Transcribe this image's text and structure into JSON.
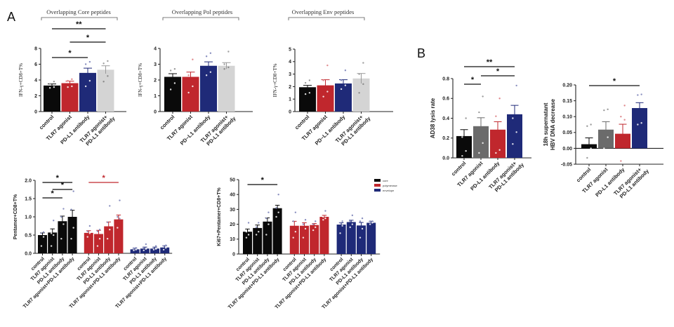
{
  "figure": {
    "panel_labels": [
      "A",
      "B"
    ],
    "group_titles": [
      "Overlapping Core peptides",
      "Overlapping Pol peptides",
      "Overlapping Env peptides"
    ]
  },
  "colors": {
    "control": "#0a0a0a",
    "tlr7": "#c0272d",
    "pdl1": "#1f2a78",
    "combo": "#d4d4d4",
    "tlr7_gray": "#6b6b6b",
    "polymerase": "#c0272d",
    "envelope": "#1f2a78",
    "core": "#0a0a0a"
  },
  "chart_data": [
    {
      "id": "A-core",
      "type": "bar",
      "title": "Overlapping Core peptides",
      "ylabel": "IFN-γ+CD8+T%",
      "ylim": [
        0,
        8
      ],
      "yticks": [
        "0",
        "2",
        "4",
        "6",
        "8"
      ],
      "categories": [
        "control",
        "TLR7 agonist",
        "PD-L1 antibody",
        "TLR7 agonist+ PD-L1 antibody"
      ],
      "values": [
        3.3,
        3.6,
        4.9,
        5.3
      ],
      "errors": [
        0.2,
        0.25,
        0.6,
        0.5
      ],
      "bar_colors": [
        "control",
        "tlr7",
        "pdl1",
        "combo"
      ],
      "points": [
        [
          3.0,
          3.1,
          3.5,
          3.8
        ],
        [
          3.1,
          3.2,
          3.9,
          4.1
        ],
        [
          3.2,
          3.9,
          6.0,
          6.3
        ],
        [
          3.8,
          4.5,
          6.1,
          6.4
        ]
      ],
      "significance": [
        {
          "from": 0,
          "to": 2,
          "label": "*",
          "level": 1
        },
        {
          "from": 1,
          "to": 3,
          "label": "*",
          "level": 2
        },
        {
          "from": 0,
          "to": 3,
          "label": "**",
          "level": 3
        }
      ]
    },
    {
      "id": "A-pol",
      "type": "bar",
      "title": "Overlapping Pol peptides",
      "ylabel": "IFN-γ+CD8+T%",
      "ylim": [
        0,
        4
      ],
      "yticks": [
        "0",
        "1",
        "2",
        "3",
        "4"
      ],
      "categories": [
        "control",
        "TLR7 agonist",
        "PD−L1 antibody",
        "TLR7 agonist+ PD-L1 antibody"
      ],
      "values": [
        2.2,
        2.2,
        2.9,
        2.9
      ],
      "errors": [
        0.2,
        0.3,
        0.25,
        0.2
      ],
      "bar_colors": [
        "control",
        "tlr7",
        "pdl1",
        "combo"
      ],
      "points": [
        [
          1.4,
          1.8,
          2.6,
          2.7
        ],
        [
          1.2,
          1.6,
          2.3,
          3.3
        ],
        [
          2.3,
          2.5,
          3.5,
          3.7
        ],
        [
          2.7,
          2.8,
          3.0,
          3.8
        ]
      ],
      "significance": []
    },
    {
      "id": "A-env",
      "type": "bar",
      "title": "Overlapping Env peptides",
      "ylabel": "IFN-γ+CD8+T%",
      "ylim": [
        0,
        5
      ],
      "yticks": [
        "0",
        "1",
        "2",
        "3",
        "4",
        "5"
      ],
      "categories": [
        "control",
        "TLR7 agonist",
        "PD−L1 antibody",
        "TLR7 agonist+ PD-L1 antibody"
      ],
      "values": [
        1.95,
        2.1,
        2.25,
        2.65
      ],
      "errors": [
        0.15,
        0.45,
        0.3,
        0.4
      ],
      "bar_colors": [
        "control",
        "tlr7",
        "pdl1",
        "combo"
      ],
      "points": [
        [
          1.4,
          1.5,
          2.3,
          2.5
        ],
        [
          1.2,
          1.6,
          2.5,
          3.7
        ],
        [
          1.8,
          2.1,
          2.5,
          3.3
        ],
        [
          1.5,
          2.2,
          3.0,
          3.9
        ]
      ],
      "significance": []
    },
    {
      "id": "A-pentamer",
      "type": "bar",
      "ylabel": "Pentamer+CD8+T%",
      "ylim": [
        0,
        2.0
      ],
      "yticks": [
        "0.0",
        "0.5",
        "1.0",
        "1.5",
        "2.0"
      ],
      "categories": [
        "control",
        "TLR7 agonist",
        "PD-L1 antibody",
        "TLR7 agonist+PD-L1 antibody",
        "control",
        "TLR7 agonist",
        "PD-L1 antibody",
        "TLR7 agonist+PD-L1 antibody",
        "control",
        "TLR7 agonist",
        "PD-L1 antibody",
        "TLR7 agonist+PD-L1 antibody"
      ],
      "groups": [
        "core",
        "core",
        "core",
        "core",
        "polymerase",
        "polymerase",
        "polymerase",
        "polymerase",
        "envelope",
        "envelope",
        "envelope",
        "envelope"
      ],
      "values": [
        0.5,
        0.57,
        0.88,
        1.0,
        0.56,
        0.53,
        0.74,
        0.93,
        0.11,
        0.13,
        0.13,
        0.16
      ],
      "errors": [
        0.06,
        0.1,
        0.14,
        0.18,
        0.06,
        0.1,
        0.12,
        0.12,
        0.03,
        0.04,
        0.04,
        0.05
      ],
      "points": [
        [
          0.2,
          0.45,
          0.55,
          0.58
        ],
        [
          0.2,
          0.5,
          0.55,
          0.9
        ],
        [
          0.4,
          0.8,
          1.0,
          1.22
        ],
        [
          0.4,
          0.7,
          1.2,
          1.7
        ],
        [
          0.45,
          0.55,
          0.6,
          0.75
        ],
        [
          0.2,
          0.4,
          0.6,
          0.65
        ],
        [
          0.4,
          0.65,
          0.85,
          1.3
        ],
        [
          0.7,
          0.95,
          1.0,
          1.45
        ],
        [
          0.08,
          0.1,
          0.14,
          0.15
        ],
        [
          0.08,
          0.12,
          0.15,
          0.25
        ],
        [
          0.1,
          0.12,
          0.15,
          0.2
        ],
        [
          0.1,
          0.15,
          0.2,
          0.22
        ]
      ],
      "significance": [
        {
          "from": 0,
          "to": 2,
          "label": "*",
          "level": 1,
          "color": "core"
        },
        {
          "from": 1,
          "to": 3,
          "label": "*",
          "level": 2,
          "color": "core"
        },
        {
          "from": 0,
          "to": 3,
          "label": "*",
          "level": 3,
          "color": "core"
        },
        {
          "from": 4,
          "to": 7,
          "label": "*",
          "level": 3,
          "color": "polymerase"
        }
      ]
    },
    {
      "id": "A-ki67",
      "type": "bar",
      "ylabel": "Ki67+Pentamer+CD8+T%",
      "ylim": [
        0,
        50
      ],
      "yticks": [
        "0",
        "10",
        "20",
        "30",
        "40",
        "50"
      ],
      "categories": [
        "control",
        "TLR7 agonist",
        "PD-L1 antibody",
        "TLR7 agonist+PD-L1 antibody",
        "control",
        "TLR7 agonist",
        "PD-L1 antibody",
        "TLR7 agonist+PD-L1 antibody",
        "control",
        "TLR7 agonist",
        "PD-L1 antibody",
        "TLR7 agonist+PD-L1 antibody"
      ],
      "groups": [
        "core",
        "core",
        "core",
        "core",
        "polymerase",
        "polymerase",
        "polymerase",
        "polymerase",
        "envelope",
        "envelope",
        "envelope",
        "envelope"
      ],
      "values": [
        15,
        17.5,
        21.8,
        30.8,
        19,
        19,
        19.5,
        25,
        19.8,
        21.5,
        19.2,
        21
      ],
      "errors": [
        1.8,
        2,
        2.5,
        2,
        3,
        2,
        1,
        1,
        1.2,
        1.2,
        2,
        1
      ],
      "points": [
        [
          11,
          13,
          15,
          21
        ],
        [
          13,
          15,
          18,
          21
        ],
        [
          13,
          20,
          24,
          28
        ],
        [
          25,
          28,
          31,
          40
        ],
        [
          11,
          15,
          22,
          28
        ],
        [
          11,
          17,
          20,
          23
        ],
        [
          16,
          18,
          20,
          22
        ],
        [
          23,
          24,
          25,
          29
        ],
        [
          14,
          19,
          21,
          22
        ],
        [
          18,
          20,
          22,
          26
        ],
        [
          11,
          17,
          22,
          24
        ],
        [
          20,
          21,
          22,
          22
        ]
      ],
      "legend": {
        "entries": [
          "core",
          "polymerase",
          "envelope"
        ],
        "placement": "top-right"
      },
      "significance": [
        {
          "from": 0,
          "to": 3,
          "label": "*",
          "level": 1,
          "color": "core"
        }
      ]
    },
    {
      "id": "B-lysis",
      "type": "bar",
      "ylabel": "AD38 lysis rate",
      "ylim": [
        0,
        0.8
      ],
      "yticks": [
        "0.0",
        "0.2",
        "0.4",
        "0.6",
        "0.8"
      ],
      "categories": [
        "control",
        "TLR7 agonist",
        "PD-L1 antibody",
        "TLR7 agonist+ PD-L1 antibody"
      ],
      "values": [
        0.22,
        0.32,
        0.285,
        0.44
      ],
      "errors": [
        0.065,
        0.085,
        0.08,
        0.09
      ],
      "bar_colors": [
        "control",
        "tlr7_gray",
        "tlr7",
        "pdl1"
      ],
      "points": [
        [
          0.02,
          0.07,
          0.21,
          0.4
        ],
        [
          0.05,
          0.15,
          0.46,
          0.62
        ],
        [
          0.05,
          0.08,
          0.42,
          0.6
        ],
        [
          0.14,
          0.26,
          0.4,
          0.73
        ]
      ],
      "significance": [
        {
          "from": 0,
          "to": 1,
          "label": "*",
          "level": 1
        },
        {
          "from": 1,
          "to": 3,
          "label": "*",
          "level": 2
        },
        {
          "from": 0,
          "to": 3,
          "label": "**",
          "level": 3
        }
      ]
    },
    {
      "id": "B-hbv",
      "type": "bar",
      "ylabel": "18h supernatant HBV DNA decrease",
      "ylabel_lines": [
        "18h supernatant",
        "HBV DNA decrease"
      ],
      "ylim": [
        -0.05,
        0.2
      ],
      "yticks": [
        "-0.05",
        "0.00",
        "0.05",
        "0.10",
        "0.15",
        "0.20"
      ],
      "categories": [
        "control",
        "TLR7 agonist",
        "PD-L1 antibody",
        "TLR7 agonist+ PD-L1 antibody"
      ],
      "values": [
        0.013,
        0.059,
        0.046,
        0.127
      ],
      "errors": [
        0.02,
        0.025,
        0.03,
        0.017
      ],
      "bar_colors": [
        "control",
        "tlr7_gray",
        "tlr7",
        "pdl1"
      ],
      "points": [
        [
          -0.03,
          0.0,
          0.07,
          0.075
        ],
        [
          0.0,
          0.035,
          0.12,
          0.123
        ],
        [
          -0.04,
          0.09,
          0.1,
          0.135
        ],
        [
          0.075,
          0.08,
          0.168,
          0.17
        ]
      ],
      "significance": [
        {
          "from": 0,
          "to": 3,
          "label": "*",
          "level": 1
        }
      ]
    }
  ]
}
